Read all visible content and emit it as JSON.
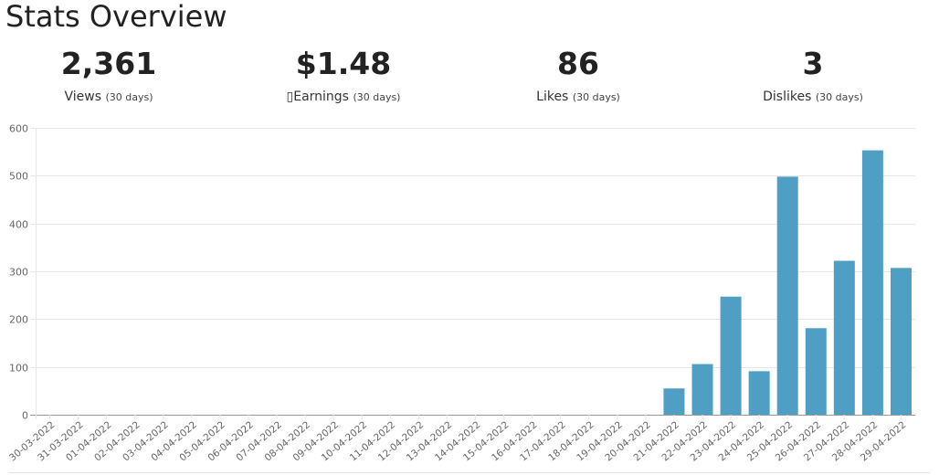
{
  "page": {
    "title": "Stats Overview"
  },
  "stats": [
    {
      "value": "2,361",
      "label": "Views",
      "period": "(30 days)"
    },
    {
      "value": "$1.48",
      "label": "▯Earnings",
      "period": "(30 days)"
    },
    {
      "value": "86",
      "label": "Likes",
      "period": "(30 days)"
    },
    {
      "value": "3",
      "label": "Dislikes",
      "period": "(30 days)"
    }
  ],
  "colors": {
    "bar": "#4f9ec4",
    "grid": "#e6e6e6",
    "axis": "#999999",
    "tick_text": "#666666"
  },
  "chart_data": {
    "type": "bar",
    "title": "",
    "xlabel": "",
    "ylabel": "",
    "ylim": [
      0,
      600
    ],
    "yticks": [
      0,
      100,
      200,
      300,
      400,
      500,
      600
    ],
    "grid": true,
    "legend": "none",
    "categories": [
      "30-03-2022",
      "31-03-2022",
      "01-04-2022",
      "02-04-2022",
      "03-04-2022",
      "04-04-2022",
      "05-04-2022",
      "06-04-2022",
      "07-04-2022",
      "08-04-2022",
      "09-04-2022",
      "10-04-2022",
      "11-04-2022",
      "12-04-2022",
      "13-04-2022",
      "14-04-2022",
      "15-04-2022",
      "16-04-2022",
      "17-04-2022",
      "18-04-2022",
      "19-04-2022",
      "20-04-2022",
      "21-04-2022",
      "22-04-2022",
      "23-04-2022",
      "24-04-2022",
      "25-04-2022",
      "26-04-2022",
      "27-04-2022",
      "28-04-2022",
      "29-04-2022"
    ],
    "series": [
      {
        "values": [
          0,
          0,
          0,
          0,
          0,
          0,
          0,
          0,
          0,
          0,
          0,
          0,
          0,
          0,
          0,
          0,
          0,
          0,
          0,
          0,
          0,
          0,
          55,
          106,
          247,
          91,
          498,
          181,
          322,
          553,
          307
        ]
      }
    ]
  }
}
